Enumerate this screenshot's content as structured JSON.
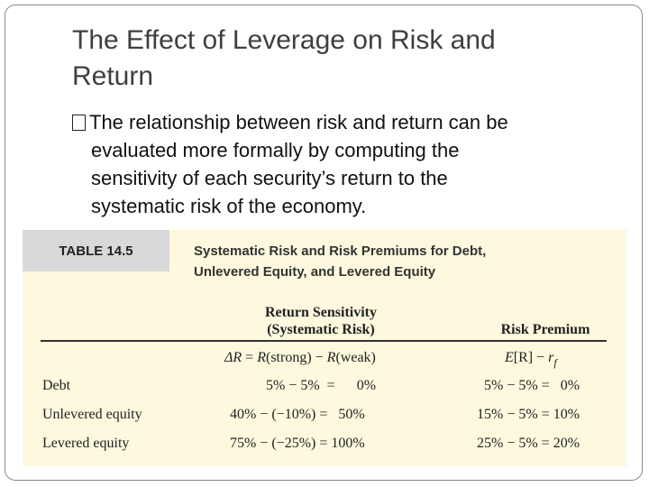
{
  "slide": {
    "title_line1": "The Effect of Leverage on Risk and",
    "title_line2": "Return",
    "bullet_line1": "The relationship between risk and return can be",
    "bullet_line2": "evaluated more formally by computing the",
    "bullet_line3": "sensitivity of each security’s return to the",
    "bullet_line4": "systematic risk of the economy."
  },
  "table": {
    "label": "TABLE 14.5",
    "caption_line1": "Systematic Risk and Risk Premiums for Debt,",
    "caption_line2": "Unlevered Equity, and Levered Equity",
    "col1_header_line1": "Return Sensitivity",
    "col1_header_line2": "(Systematic Risk)",
    "col2_header": "Risk Premium",
    "formula1": {
      "delta_r": "ΔR",
      "eq": " = ",
      "r1": "R",
      "strong": "(strong)",
      "minus": " − ",
      "r2": "R",
      "weak": "(weak)"
    },
    "formula2": {
      "e": "E",
      "r_bracket": "[R]",
      "minus": " − ",
      "r": "r",
      "sub": "f"
    },
    "rows": [
      {
        "label": "Debt",
        "sensitivity": "5% − 5%  =      0%",
        "premium": "5% − 5% =   0%"
      },
      {
        "label": "Unlevered equity",
        "sensitivity": "40% − (−10%) =   50%",
        "premium": "15% − 5% = 10%"
      },
      {
        "label": "Levered equity",
        "sensitivity": "75% − (−25%) = 100%",
        "premium": "25% − 5% = 20%"
      }
    ]
  }
}
